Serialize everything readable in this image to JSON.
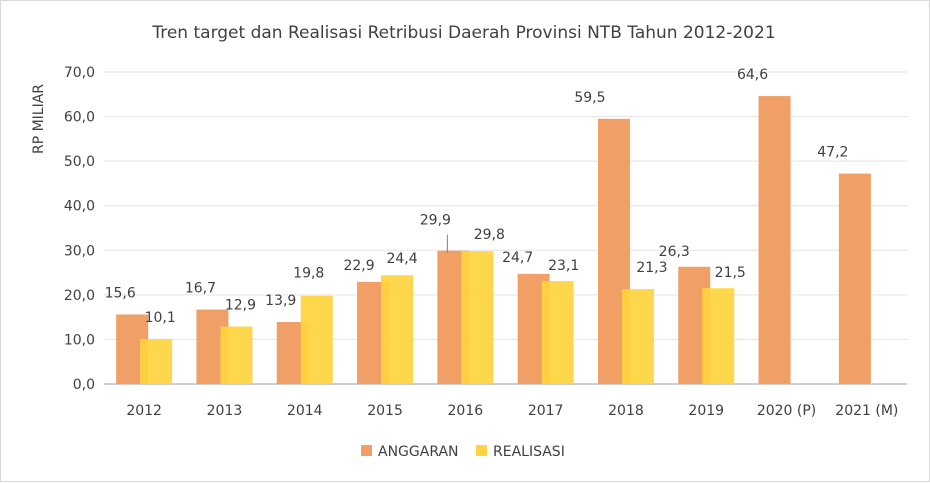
{
  "chart_data": {
    "type": "bar",
    "title": "Tren target dan Realisasi Retribusi Daerah Provinsi NTB Tahun 2012-2021",
    "xlabel": "",
    "ylabel": "RP MILIAR",
    "ylim": [
      0,
      70
    ],
    "y_ticks": [
      "0,0",
      "10,0",
      "20,0",
      "30,0",
      "40,0",
      "50,0",
      "60,0",
      "70,0"
    ],
    "y_tick_values": [
      0,
      10,
      20,
      30,
      40,
      50,
      60,
      70
    ],
    "grid": true,
    "legend_position": "bottom",
    "categories": [
      "2012",
      "2013",
      "2014",
      "2015",
      "2016",
      "2017",
      "2018",
      "2019",
      "2020 (P)",
      "2021 (M)"
    ],
    "series": [
      {
        "name": "ANGGARAN",
        "color": "#F0A066",
        "values": [
          15.6,
          16.7,
          13.9,
          22.9,
          29.9,
          24.7,
          59.5,
          26.3,
          64.6,
          47.2
        ],
        "labels": [
          "15,6",
          "16,7",
          "13,9",
          "22,9",
          "29,9",
          "24,7",
          "59,5",
          "26,3",
          "64,6",
          "47,2"
        ]
      },
      {
        "name": "REALISASI",
        "color": "#FFD43E",
        "values": [
          10.1,
          12.9,
          19.8,
          24.4,
          29.8,
          23.1,
          21.3,
          21.5,
          null,
          null
        ],
        "labels": [
          "10,1",
          "12,9",
          "19,8",
          "24,4",
          "29,8",
          "23,1",
          "21,3",
          "21,5",
          "",
          ""
        ]
      }
    ]
  }
}
